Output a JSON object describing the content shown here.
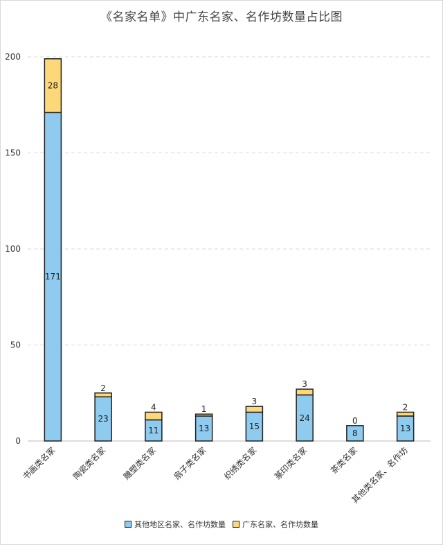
{
  "chart_data": {
    "type": "bar",
    "stacked": true,
    "title": "《名家名单》中广东名家、名作坊数量占比图",
    "categories": [
      "书画类名家",
      "陶瓷类名家",
      "雕塑类名家",
      "扇子类名家",
      "织绣类名家",
      "篆印类名家",
      "茶类名家",
      "其他类名家、名作坊"
    ],
    "series": [
      {
        "name": "其他地区名家、名作坊数量",
        "color": "#8ecbef",
        "values": [
          171,
          23,
          11,
          13,
          15,
          24,
          8,
          13
        ]
      },
      {
        "name": "广东名家、名作坊数量",
        "color": "#fcd878",
        "values": [
          28,
          2,
          4,
          1,
          3,
          3,
          0,
          2
        ]
      }
    ],
    "yticks": [
      0,
      50,
      100,
      150,
      200
    ],
    "ylim": [
      0,
      200
    ],
    "grid": true,
    "legend_position": "bottom"
  }
}
